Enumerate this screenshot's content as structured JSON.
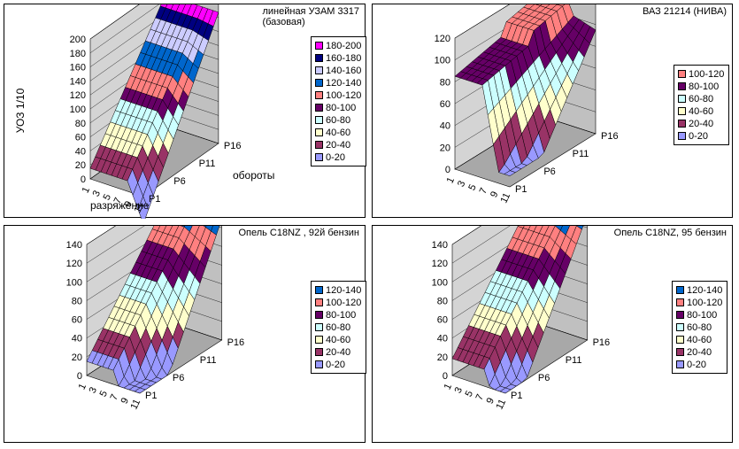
{
  "colors": {
    "0-20": "#9999ff",
    "20-40": "#993366",
    "40-60": "#ffffcc",
    "60-80": "#ccffff",
    "80-100": "#660066",
    "100-120": "#ff8080",
    "120-140": "#0066cc",
    "140-160": "#ccccff",
    "160-180": "#000080",
    "180-200": "#ff00ff"
  },
  "chart_data": [
    {
      "type": "surface",
      "title": "линейная УЗАМ 3317\n(базовая)",
      "zlabel": "УОЗ 1/10",
      "xlabel": "разряжение",
      "ylabel": "обороты",
      "zlim": [
        0,
        200
      ],
      "zticks": [
        "0",
        "20",
        "40",
        "60",
        "80",
        "100",
        "120",
        "140",
        "160",
        "180",
        "200"
      ],
      "x_ticks": [
        "1",
        "3",
        "5",
        "7",
        "9",
        "11"
      ],
      "y_ticks": [
        "P1",
        "P6",
        "P11",
        "P16"
      ],
      "legend": [
        "180-200",
        "160-180",
        "140-160",
        "120-140",
        "100-120",
        "80-100",
        "60-80",
        "40-60",
        "20-40",
        "0-20"
      ]
    },
    {
      "type": "surface",
      "title": "ВАЗ 21214 (НИВА)",
      "zlabel": "",
      "xlabel": "",
      "ylabel": "",
      "zlim": [
        0,
        120
      ],
      "zticks": [
        "0",
        "20",
        "40",
        "60",
        "80",
        "100",
        "120"
      ],
      "x_ticks": [
        "1",
        "3",
        "5",
        "7",
        "9",
        "11"
      ],
      "y_ticks": [
        "P1",
        "P6",
        "P11",
        "P16"
      ],
      "legend": [
        "100-120",
        "80-100",
        "60-80",
        "40-60",
        "20-40",
        "0-20"
      ]
    },
    {
      "type": "surface",
      "title": "Опель С18NZ , 92й бензин",
      "zlabel": "",
      "xlabel": "",
      "ylabel": "",
      "zlim": [
        0,
        140
      ],
      "zticks": [
        "0",
        "20",
        "40",
        "60",
        "80",
        "100",
        "120",
        "140"
      ],
      "x_ticks": [
        "1",
        "3",
        "5",
        "7",
        "9",
        "11"
      ],
      "y_ticks": [
        "P1",
        "P6",
        "P11",
        "P16"
      ],
      "legend": [
        "120-140",
        "100-120",
        "80-100",
        "60-80",
        "40-60",
        "20-40",
        "0-20"
      ]
    },
    {
      "type": "surface",
      "title": "Опель С18NZ, 95 бензин",
      "zlabel": "",
      "xlabel": "",
      "ylabel": "",
      "zlim": [
        0,
        140
      ],
      "zticks": [
        "0",
        "20",
        "40",
        "60",
        "80",
        "100",
        "120",
        "140"
      ],
      "x_ticks": [
        "1",
        "3",
        "5",
        "7",
        "9",
        "11"
      ],
      "y_ticks": [
        "P1",
        "P6",
        "P11",
        "P16"
      ],
      "legend": [
        "120-140",
        "100-120",
        "80-100",
        "60-80",
        "40-60",
        "20-40",
        "0-20"
      ]
    }
  ]
}
